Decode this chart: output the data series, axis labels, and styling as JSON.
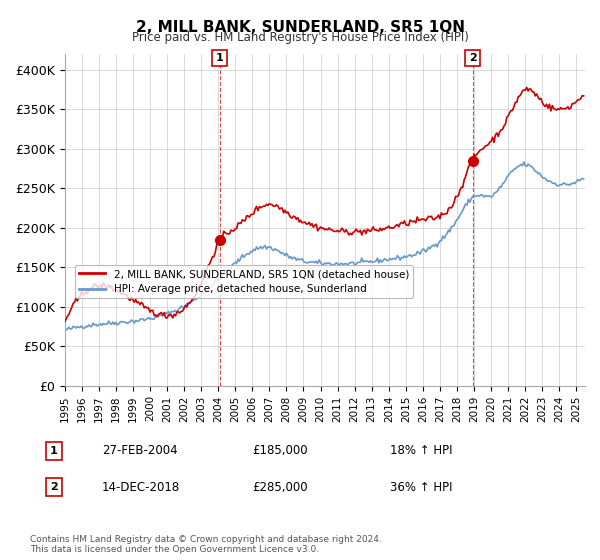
{
  "title": "2, MILL BANK, SUNDERLAND, SR5 1QN",
  "subtitle": "Price paid vs. HM Land Registry's House Price Index (HPI)",
  "ylabel": "",
  "ylim": [
    0,
    420000
  ],
  "yticks": [
    0,
    50000,
    100000,
    150000,
    200000,
    250000,
    300000,
    350000,
    400000
  ],
  "ytick_labels": [
    "£0",
    "£50K",
    "£100K",
    "£150K",
    "£200K",
    "£250K",
    "£300K",
    "£350K",
    "£400K"
  ],
  "hpi_color": "#6699cc",
  "price_color": "#cc0000",
  "marker_color": "#cc0000",
  "annotation_color": "#cc0000",
  "grid_color": "#cccccc",
  "bg_color": "#ffffff",
  "sale1_date": "27-FEB-2004",
  "sale1_price": 185000,
  "sale1_hpi_pct": "18%",
  "sale2_date": "14-DEC-2018",
  "sale2_price": 285000,
  "sale2_hpi_pct": "36%",
  "legend_label1": "2, MILL BANK, SUNDERLAND, SR5 1QN (detached house)",
  "legend_label2": "HPI: Average price, detached house, Sunderland",
  "footnote": "Contains HM Land Registry data © Crown copyright and database right 2024.\nThis data is licensed under the Open Government Licence v3.0.",
  "sale1_idx": 9,
  "sale2_idx": 23,
  "x_start_year": 1995,
  "x_end_year": 2025
}
